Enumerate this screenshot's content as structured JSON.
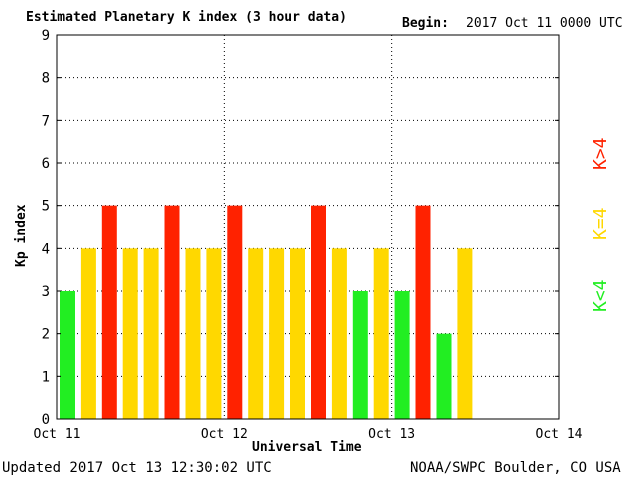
{
  "header": {
    "title": "Estimated Planetary K index (3 hour data)",
    "begin_label": "Begin:",
    "begin_value": "2017 Oct 11 0000 UTC"
  },
  "footer": {
    "updated": "Updated 2017 Oct 13 12:30:02 UTC",
    "source": "NOAA/SWPC Boulder, CO USA"
  },
  "legend": {
    "items": [
      {
        "label": "K>4",
        "color": "#ff2200"
      },
      {
        "label": "K=4",
        "color": "#ffd800"
      },
      {
        "label": "K<4",
        "color": "#22ee22"
      }
    ]
  },
  "chart_data": {
    "type": "bar",
    "title": "Estimated Planetary K index (3 hour data)",
    "xlabel": "Universal Time",
    "ylabel": "Kp index",
    "ylim": [
      0,
      9
    ],
    "yticks": [
      "0",
      "1",
      "2",
      "3",
      "4",
      "5",
      "6",
      "7",
      "8",
      "9"
    ],
    "xticks": [
      "Oct 11",
      "Oct 12",
      "Oct 13",
      "Oct 14"
    ],
    "grid": true,
    "values": [
      3,
      4,
      5,
      4,
      4,
      5,
      4,
      4,
      5,
      4,
      4,
      4,
      5,
      4,
      3,
      4,
      3,
      5,
      2,
      4
    ],
    "colors": {
      "low": "#22ee22",
      "mid": "#ffd800",
      "high": "#ff2200"
    }
  }
}
